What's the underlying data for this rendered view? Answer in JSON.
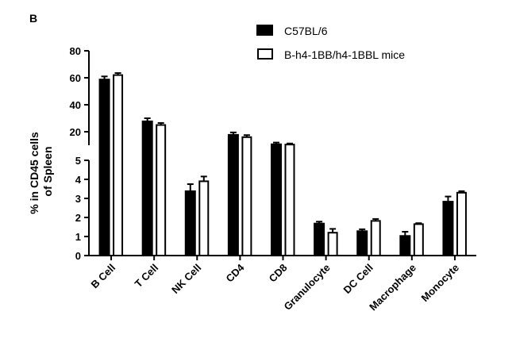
{
  "panel_label": "B",
  "chart_data": {
    "type": "bar",
    "categories": [
      "B Cell",
      "T Cell",
      "NK Cell",
      "CD4",
      "CD8",
      "Granulocyte",
      "DC Cell",
      "Macrophage",
      "Monocyte"
    ],
    "series": [
      {
        "name": "C57BL/6",
        "color": "#000000",
        "fill": "solid",
        "values": [
          59,
          28,
          3.4,
          18,
          11,
          1.7,
          1.3,
          1.05,
          2.85
        ],
        "errors": [
          2,
          2,
          0.35,
          1.5,
          1.0,
          0.08,
          0.08,
          0.2,
          0.25
        ]
      },
      {
        "name": "B-h4-1BB/h4-1BBL mice",
        "color": "#000000",
        "fill": "open",
        "values": [
          62,
          25,
          3.9,
          16,
          10.5,
          1.2,
          1.82,
          1.65,
          3.3
        ],
        "errors": [
          1.5,
          1.5,
          0.25,
          1.5,
          0.8,
          0.2,
          0.1,
          0.05,
          0.08
        ]
      }
    ],
    "ylabel": "% in CD45 cells of Spleen",
    "y_axis": {
      "broken": true,
      "lower": {
        "range": [
          0,
          5
        ],
        "ticks": [
          "0",
          "1",
          "2",
          "3",
          "4",
          "5"
        ]
      },
      "upper": {
        "range": [
          10,
          80
        ],
        "ticks": [
          "20",
          "40",
          "60",
          "80"
        ]
      }
    },
    "legend_position": "top-right",
    "grid": false
  }
}
